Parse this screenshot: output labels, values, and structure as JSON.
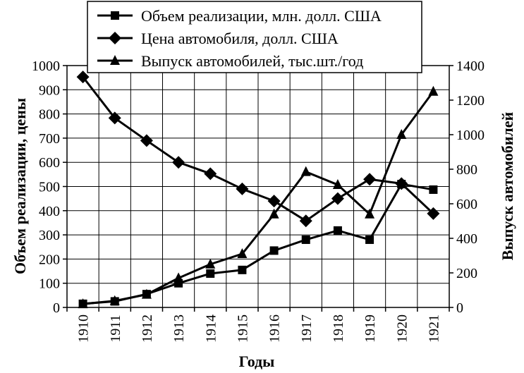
{
  "chart_data": {
    "type": "line",
    "categories": [
      "1910",
      "1911",
      "1912",
      "1913",
      "1914",
      "1915",
      "1916",
      "1917",
      "1918",
      "1919",
      "1920",
      "1921"
    ],
    "xlabel": "Годы",
    "ylabel": "Объем реализации, цены",
    "y2label": "Выпуск автомобилей",
    "ylim": [
      0,
      1000
    ],
    "y2lim": [
      0,
      1400
    ],
    "yticks": [
      "0",
      "100",
      "200",
      "300",
      "400",
      "500",
      "600",
      "700",
      "800",
      "900",
      "1000"
    ],
    "y2ticks": [
      "0",
      "200",
      "400",
      "600",
      "800",
      "1000",
      "1200",
      "1400"
    ],
    "grid": true,
    "legend_position": "top-center",
    "series": [
      {
        "name": "Объем реализации, млн. долл. США",
        "marker": "square",
        "axis": "left",
        "values": [
          15,
          25,
          55,
          100,
          140,
          155,
          235,
          280,
          318,
          280,
          510,
          487
        ]
      },
      {
        "name": "Цена автомобиля, долл. США",
        "marker": "diamond",
        "axis": "left",
        "values": [
          953,
          783,
          690,
          600,
          553,
          490,
          440,
          358,
          450,
          530,
          512,
          388
        ]
      },
      {
        "name": "Выпуск автомобилей, тыс.шт./год",
        "marker": "triangle",
        "axis": "right",
        "values": [
          20,
          38,
          75,
          170,
          250,
          310,
          540,
          785,
          710,
          540,
          1000,
          1250
        ]
      }
    ],
    "colors": {
      "line": "#000000",
      "grid": "#000000",
      "background": "#ffffff"
    }
  }
}
